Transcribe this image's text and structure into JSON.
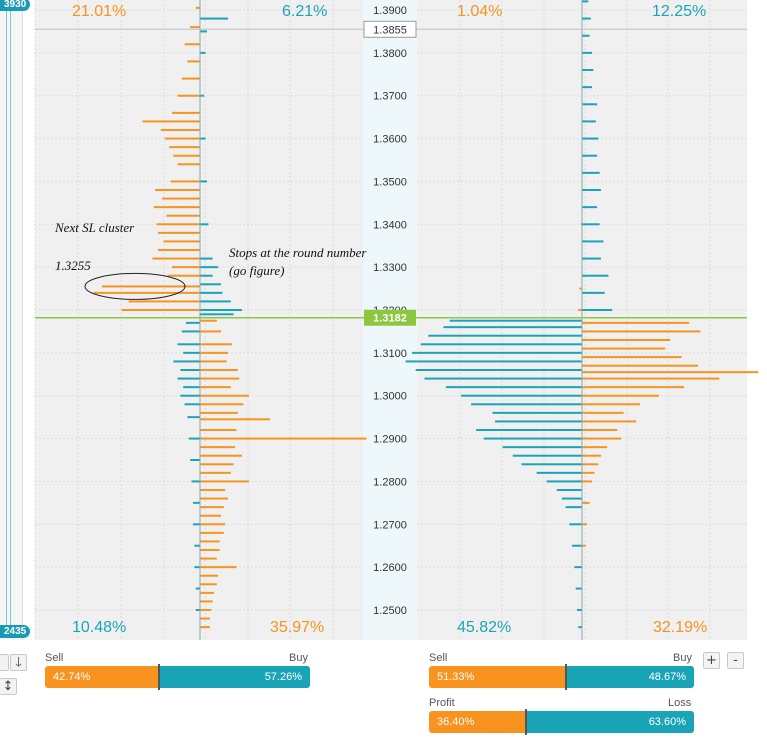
{
  "colors": {
    "orange": "#f7931e",
    "teal": "#1aa4b8",
    "current_line": "#8dc63f",
    "grid": "#dcdcdc",
    "panel_bg": "#f0f0f0",
    "axis_bg": "#eef8fb"
  },
  "left_scale": {
    "top_badge": "3930",
    "bottom_badge": "2435"
  },
  "price_axis": {
    "ticks": [
      "1.3900",
      "1.3800",
      "1.3700",
      "1.3600",
      "1.3500",
      "1.3400",
      "1.3300",
      "1.3200",
      "1.3100",
      "1.3000",
      "1.2900",
      "1.2800",
      "1.2700",
      "1.2600",
      "1.2500"
    ],
    "cursor_price": "1.3855",
    "current_price": "1.3182"
  },
  "order_book": {
    "top_left": "21.01%",
    "top_right": "6.21%",
    "bottom_left": "10.48%",
    "bottom_right": "35.97%"
  },
  "positions": {
    "top_left": "1.04%",
    "top_right": "12.25%",
    "bottom_left": "45.82%",
    "bottom_right": "32.19%"
  },
  "annotations": {
    "next_sl": "Next SL cluster",
    "sl_price": "1.3255",
    "stops_line1": "Stops at the round number",
    "stops_line2": "(go figure)"
  },
  "orders_ratio": {
    "sell_label": "Sell",
    "buy_label": "Buy",
    "sell_value": "42.74%",
    "buy_value": "57.26%",
    "sell_fraction": 0.4274
  },
  "positions_ratio": {
    "sell_label": "Sell",
    "buy_label": "Buy",
    "sell_value": "51.33%",
    "buy_value": "48.67%",
    "sell_fraction": 0.5133
  },
  "profit_ratio": {
    "profit_label": "Profit",
    "loss_label": "Loss",
    "profit_value": "36.40%",
    "loss_value": "63.60%",
    "profit_fraction": 0.364
  },
  "buttons": {
    "down_arrow": "🡓",
    "sort_arrows": "↕",
    "plus": "+",
    "minus": "-"
  },
  "chart_data": {
    "type": "histogram",
    "price_range": [
      1.245,
      1.393
    ],
    "current_price": 1.3182,
    "order_book": {
      "sell_orders_orange_above": [
        [
          1.3905,
          0.3
        ],
        [
          1.386,
          0.7
        ],
        [
          1.382,
          1.1
        ],
        [
          1.378,
          0.9
        ],
        [
          1.374,
          1.3
        ],
        [
          1.37,
          1.6
        ],
        [
          1.366,
          2.0
        ],
        [
          1.364,
          4.1
        ],
        [
          1.362,
          2.8
        ],
        [
          1.36,
          2.5
        ],
        [
          1.358,
          2.2
        ],
        [
          1.356,
          1.9
        ],
        [
          1.354,
          1.6
        ],
        [
          1.35,
          2.1
        ],
        [
          1.348,
          3.2
        ],
        [
          1.346,
          2.7
        ],
        [
          1.344,
          3.3
        ],
        [
          1.342,
          2.4
        ],
        [
          1.34,
          3.1
        ],
        [
          1.338,
          3.0
        ],
        [
          1.336,
          2.6
        ],
        [
          1.334,
          3.0
        ],
        [
          1.332,
          3.4
        ],
        [
          1.33,
          2.0
        ],
        [
          1.328,
          2.3
        ],
        [
          1.3255,
          7.0
        ],
        [
          1.324,
          7.6
        ],
        [
          1.322,
          5.1
        ],
        [
          1.32,
          5.6
        ]
      ],
      "buy_orders_teal_above": [
        [
          1.388,
          2.0
        ],
        [
          1.385,
          0.5
        ],
        [
          1.38,
          0.4
        ],
        [
          1.37,
          0.3
        ],
        [
          1.36,
          0.4
        ],
        [
          1.35,
          0.5
        ],
        [
          1.34,
          0.6
        ],
        [
          1.332,
          0.9
        ],
        [
          1.33,
          1.3
        ],
        [
          1.328,
          0.9
        ],
        [
          1.326,
          1.5
        ],
        [
          1.324,
          1.6
        ],
        [
          1.322,
          2.2
        ],
        [
          1.32,
          3.0
        ],
        [
          1.319,
          2.4
        ]
      ],
      "buy_orders_orange_below": [
        [
          1.3175,
          1.2
        ],
        [
          1.315,
          1.5
        ],
        [
          1.312,
          2.3
        ],
        [
          1.31,
          2.0
        ],
        [
          1.308,
          1.9
        ],
        [
          1.306,
          2.7
        ],
        [
          1.304,
          2.8
        ],
        [
          1.302,
          2.2
        ],
        [
          1.3,
          3.5
        ],
        [
          1.298,
          3.1
        ],
        [
          1.296,
          2.7
        ],
        [
          1.2945,
          5.0
        ],
        [
          1.292,
          2.6
        ],
        [
          1.29,
          11.9
        ],
        [
          1.288,
          2.5
        ],
        [
          1.286,
          3.0
        ],
        [
          1.284,
          2.4
        ],
        [
          1.282,
          2.2
        ],
        [
          1.28,
          3.5
        ],
        [
          1.278,
          1.8
        ],
        [
          1.276,
          2.0
        ],
        [
          1.274,
          1.7
        ],
        [
          1.272,
          1.5
        ],
        [
          1.27,
          1.8
        ],
        [
          1.268,
          1.7
        ],
        [
          1.266,
          1.4
        ],
        [
          1.264,
          1.4
        ],
        [
          1.262,
          1.2
        ],
        [
          1.26,
          2.6
        ],
        [
          1.258,
          1.3
        ],
        [
          1.256,
          1.2
        ],
        [
          1.254,
          1.0
        ],
        [
          1.252,
          0.9
        ],
        [
          1.25,
          0.8
        ],
        [
          1.248,
          0.7
        ],
        [
          1.246,
          0.7
        ]
      ],
      "sell_orders_teal_below": [
        [
          1.317,
          1.0
        ],
        [
          1.315,
          1.3
        ],
        [
          1.312,
          1.6
        ],
        [
          1.31,
          1.2
        ],
        [
          1.308,
          1.9
        ],
        [
          1.306,
          1.4
        ],
        [
          1.304,
          1.6
        ],
        [
          1.302,
          1.2
        ],
        [
          1.3,
          1.4
        ],
        [
          1.298,
          1.1
        ],
        [
          1.295,
          0.9
        ],
        [
          1.29,
          0.8
        ],
        [
          1.285,
          0.7
        ],
        [
          1.28,
          0.6
        ],
        [
          1.275,
          0.5
        ],
        [
          1.27,
          0.5
        ],
        [
          1.265,
          0.4
        ],
        [
          1.26,
          0.4
        ],
        [
          1.255,
          0.3
        ],
        [
          1.25,
          0.3
        ]
      ]
    },
    "positions": {
      "orange_above": [
        [
          1.34,
          0.1
        ],
        [
          1.325,
          0.2
        ],
        [
          1.32,
          0.3
        ]
      ],
      "teal_above": [
        [
          1.392,
          0.5
        ],
        [
          1.388,
          0.7
        ],
        [
          1.384,
          0.6
        ],
        [
          1.38,
          0.8
        ],
        [
          1.376,
          0.9
        ],
        [
          1.372,
          0.8
        ],
        [
          1.368,
          1.2
        ],
        [
          1.364,
          1.1
        ],
        [
          1.36,
          1.3
        ],
        [
          1.356,
          1.2
        ],
        [
          1.352,
          1.4
        ],
        [
          1.348,
          1.5
        ],
        [
          1.344,
          1.2
        ],
        [
          1.34,
          1.4
        ],
        [
          1.336,
          1.7
        ],
        [
          1.332,
          1.5
        ],
        [
          1.328,
          2.1
        ],
        [
          1.324,
          1.8
        ],
        [
          1.32,
          2.4
        ]
      ],
      "orange_below": [
        [
          1.317,
          8.5
        ],
        [
          1.315,
          9.4
        ],
        [
          1.313,
          7.0
        ],
        [
          1.311,
          6.6
        ],
        [
          1.309,
          7.9
        ],
        [
          1.307,
          9.2
        ],
        [
          1.3055,
          14.0
        ],
        [
          1.304,
          10.9
        ],
        [
          1.302,
          8.1
        ],
        [
          1.3,
          6.1
        ],
        [
          1.298,
          4.6
        ],
        [
          1.296,
          3.3
        ],
        [
          1.294,
          4.3
        ],
        [
          1.292,
          2.8
        ],
        [
          1.29,
          3.1
        ],
        [
          1.288,
          2.0
        ],
        [
          1.286,
          1.5
        ],
        [
          1.284,
          1.3
        ],
        [
          1.282,
          1.0
        ],
        [
          1.28,
          0.8
        ],
        [
          1.275,
          0.6
        ],
        [
          1.27,
          0.4
        ],
        [
          1.265,
          0.3
        ]
      ],
      "teal_below": [
        [
          1.3175,
          10.5
        ],
        [
          1.316,
          11.0
        ],
        [
          1.314,
          12.2
        ],
        [
          1.312,
          12.8
        ],
        [
          1.31,
          13.5
        ],
        [
          1.308,
          14.0
        ],
        [
          1.306,
          13.2
        ],
        [
          1.304,
          12.5
        ],
        [
          1.302,
          10.8
        ],
        [
          1.3,
          9.6
        ],
        [
          1.298,
          8.8
        ],
        [
          1.296,
          7.1
        ],
        [
          1.294,
          6.9
        ],
        [
          1.292,
          8.4
        ],
        [
          1.29,
          7.8
        ],
        [
          1.288,
          6.3
        ],
        [
          1.286,
          5.5
        ],
        [
          1.284,
          4.8
        ],
        [
          1.282,
          3.6
        ],
        [
          1.28,
          2.8
        ],
        [
          1.278,
          2.0
        ],
        [
          1.276,
          1.6
        ],
        [
          1.274,
          1.3
        ],
        [
          1.27,
          1.0
        ],
        [
          1.265,
          0.8
        ],
        [
          1.26,
          0.6
        ],
        [
          1.255,
          0.5
        ],
        [
          1.25,
          0.4
        ],
        [
          1.246,
          0.3
        ]
      ]
    }
  }
}
